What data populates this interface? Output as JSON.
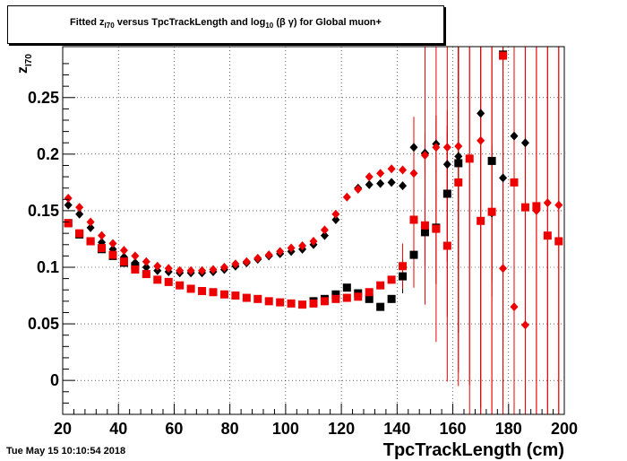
{
  "title": {
    "prefix": "Fitted  z",
    "sub1": "I70",
    "middle": "  versus TpcTrackLength and log",
    "sub2": "10",
    "suffix": " (β γ) for Global muon+"
  },
  "timestamp": "Tue May 15 10:10:54 2018",
  "chart_data": {
    "type": "scatter",
    "title": "Fitted z_I70 versus TpcTrackLength and log10 (β γ) for Global muon+",
    "xlabel": "TpcTrackLength (cm)",
    "ylabel": "z",
    "ylabel_sub": "I70",
    "xlim": [
      20,
      200
    ],
    "ylim": [
      -0.03,
      0.295
    ],
    "grid": true,
    "x_ticks": [
      20,
      40,
      60,
      80,
      100,
      120,
      140,
      160,
      180,
      200
    ],
    "y_ticks": [
      0,
      0.05,
      0.1,
      0.15,
      0.2,
      0.25
    ],
    "y_tick_labels": [
      "0",
      "0.05",
      "0.1",
      "0.15",
      "0.2",
      "0.25"
    ],
    "colors": {
      "black": "#000000",
      "red": "#ee0000"
    },
    "series": [
      {
        "marker": "diamond",
        "color": "#000000",
        "points": [
          [
            22,
            0.155
          ],
          [
            26,
            0.147
          ],
          [
            30,
            0.135
          ],
          [
            34,
            0.122
          ],
          [
            38,
            0.116
          ],
          [
            42,
            0.109
          ],
          [
            46,
            0.104
          ],
          [
            50,
            0.1
          ],
          [
            54,
            0.097
          ],
          [
            58,
            0.096
          ],
          [
            62,
            0.095
          ],
          [
            66,
            0.095
          ],
          [
            70,
            0.095
          ],
          [
            74,
            0.096
          ],
          [
            78,
            0.098
          ],
          [
            82,
            0.101
          ],
          [
            86,
            0.104
          ],
          [
            90,
            0.107
          ],
          [
            94,
            0.11
          ],
          [
            98,
            0.112
          ],
          [
            102,
            0.114
          ],
          [
            106,
            0.116
          ],
          [
            110,
            0.12
          ],
          [
            114,
            0.128
          ],
          [
            118,
            0.142
          ],
          [
            126,
            0.17
          ],
          [
            130,
            0.173
          ],
          [
            134,
            0.174
          ],
          [
            138,
            0.175
          ],
          [
            142,
            0.172
          ],
          [
            146,
            0.206
          ],
          [
            150,
            0.201
          ],
          [
            154,
            0.209
          ],
          [
            158,
            0.191
          ],
          [
            162,
            0.198
          ],
          [
            170,
            0.236
          ],
          [
            174,
            0.148
          ],
          [
            178,
            0.179
          ],
          [
            182,
            0.216
          ],
          [
            186,
            0.21
          ]
        ],
        "errors": [
          [
            146,
            0.016
          ],
          [
            150,
            0.018
          ],
          [
            154,
            0.025
          ],
          [
            158,
            0.03
          ],
          [
            162,
            0.1
          ],
          [
            170,
            0.26
          ],
          [
            174,
            0.06
          ],
          [
            178,
            0.2
          ],
          [
            182,
            0.1
          ],
          [
            186,
            0.15
          ]
        ]
      },
      {
        "marker": "square",
        "color": "#000000",
        "points": [
          [
            22,
            0.139
          ],
          [
            26,
            0.129
          ],
          [
            30,
            0.123
          ],
          [
            34,
            0.116
          ],
          [
            38,
            0.11
          ],
          [
            42,
            0.104
          ],
          [
            46,
            0.101
          ],
          [
            110,
            0.07
          ],
          [
            114,
            0.072
          ],
          [
            118,
            0.076
          ],
          [
            122,
            0.082
          ],
          [
            126,
            0.077
          ],
          [
            130,
            0.072
          ],
          [
            134,
            0.065
          ],
          [
            138,
            0.072
          ],
          [
            142,
            0.092
          ],
          [
            146,
            0.111
          ],
          [
            150,
            0.131
          ],
          [
            154,
            0.135
          ],
          [
            158,
            0.165
          ],
          [
            162,
            0.192
          ],
          [
            174,
            0.194
          ],
          [
            178,
            0.288
          ]
        ],
        "errors": [
          [
            142,
            0.015
          ],
          [
            146,
            0.025
          ],
          [
            150,
            0.03
          ],
          [
            154,
            0.05
          ],
          [
            158,
            0.06
          ],
          [
            162,
            0.15
          ],
          [
            174,
            0.12
          ],
          [
            178,
            0.26
          ]
        ]
      },
      {
        "marker": "diamond",
        "color": "#ee0000",
        "points": [
          [
            22,
            0.161
          ],
          [
            26,
            0.153
          ],
          [
            30,
            0.14
          ],
          [
            34,
            0.128
          ],
          [
            38,
            0.121
          ],
          [
            42,
            0.115
          ],
          [
            46,
            0.11
          ],
          [
            50,
            0.105
          ],
          [
            54,
            0.101
          ],
          [
            58,
            0.099
          ],
          [
            62,
            0.097
          ],
          [
            66,
            0.097
          ],
          [
            70,
            0.097
          ],
          [
            74,
            0.098
          ],
          [
            78,
            0.1
          ],
          [
            82,
            0.103
          ],
          [
            86,
            0.105
          ],
          [
            90,
            0.108
          ],
          [
            94,
            0.111
          ],
          [
            98,
            0.114
          ],
          [
            102,
            0.117
          ],
          [
            106,
            0.119
          ],
          [
            110,
            0.123
          ],
          [
            114,
            0.133
          ],
          [
            118,
            0.147
          ],
          [
            122,
            0.162
          ],
          [
            126,
            0.169
          ],
          [
            130,
            0.18
          ],
          [
            134,
            0.183
          ],
          [
            138,
            0.187
          ],
          [
            142,
            0.186
          ],
          [
            146,
            0.183
          ],
          [
            150,
            0.199
          ],
          [
            154,
            0.206
          ],
          [
            158,
            0.206
          ],
          [
            162,
            0.207
          ],
          [
            166,
            0.196
          ],
          [
            170,
            0.212
          ],
          [
            174,
            0.149
          ],
          [
            178,
            0.099
          ],
          [
            182,
            0.065
          ],
          [
            186,
            0.049
          ],
          [
            190,
            0.15
          ],
          [
            194,
            0.157
          ],
          [
            198,
            0.155
          ]
        ],
        "errors": [
          [
            146,
            0.05
          ],
          [
            150,
            0.1
          ],
          [
            154,
            0.12
          ],
          [
            158,
            0.15
          ],
          [
            162,
            0.2
          ],
          [
            166,
            0.25
          ],
          [
            170,
            0.3
          ],
          [
            174,
            0.3
          ],
          [
            178,
            0.35
          ],
          [
            182,
            0.4
          ],
          [
            186,
            0.4
          ],
          [
            190,
            0.4
          ],
          [
            194,
            0.4
          ],
          [
            198,
            0.4
          ]
        ]
      },
      {
        "marker": "square",
        "color": "#ee0000",
        "points": [
          [
            22,
            0.139
          ],
          [
            26,
            0.13
          ],
          [
            30,
            0.123
          ],
          [
            34,
            0.117
          ],
          [
            38,
            0.111
          ],
          [
            42,
            0.105
          ],
          [
            46,
            0.098
          ],
          [
            50,
            0.094
          ],
          [
            54,
            0.089
          ],
          [
            58,
            0.087
          ],
          [
            62,
            0.084
          ],
          [
            66,
            0.081
          ],
          [
            70,
            0.079
          ],
          [
            74,
            0.078
          ],
          [
            78,
            0.076
          ],
          [
            82,
            0.075
          ],
          [
            86,
            0.073
          ],
          [
            90,
            0.072
          ],
          [
            94,
            0.07
          ],
          [
            98,
            0.069
          ],
          [
            102,
            0.068
          ],
          [
            106,
            0.067
          ],
          [
            110,
            0.068
          ],
          [
            114,
            0.07
          ],
          [
            118,
            0.072
          ],
          [
            122,
            0.073
          ],
          [
            126,
            0.074
          ],
          [
            130,
            0.078
          ],
          [
            134,
            0.084
          ],
          [
            138,
            0.089
          ],
          [
            142,
            0.101
          ],
          [
            146,
            0.142
          ],
          [
            150,
            0.137
          ],
          [
            154,
            0.134
          ],
          [
            158,
            0.119
          ],
          [
            162,
            0.175
          ],
          [
            166,
            0.196
          ],
          [
            170,
            0.141
          ],
          [
            174,
            0.149
          ],
          [
            178,
            0.287
          ],
          [
            182,
            0.175
          ],
          [
            186,
            0.153
          ],
          [
            190,
            0.154
          ],
          [
            194,
            0.128
          ],
          [
            198,
            0.123
          ]
        ],
        "errors": [
          [
            142,
            0.02
          ],
          [
            146,
            0.06
          ],
          [
            150,
            0.07
          ],
          [
            154,
            0.1
          ],
          [
            158,
            0.12
          ],
          [
            162,
            0.18
          ],
          [
            166,
            0.2
          ],
          [
            170,
            0.25
          ],
          [
            174,
            0.3
          ],
          [
            178,
            0.35
          ],
          [
            182,
            0.35
          ],
          [
            186,
            0.35
          ],
          [
            190,
            0.4
          ],
          [
            194,
            0.4
          ],
          [
            198,
            0.4
          ]
        ]
      }
    ]
  }
}
